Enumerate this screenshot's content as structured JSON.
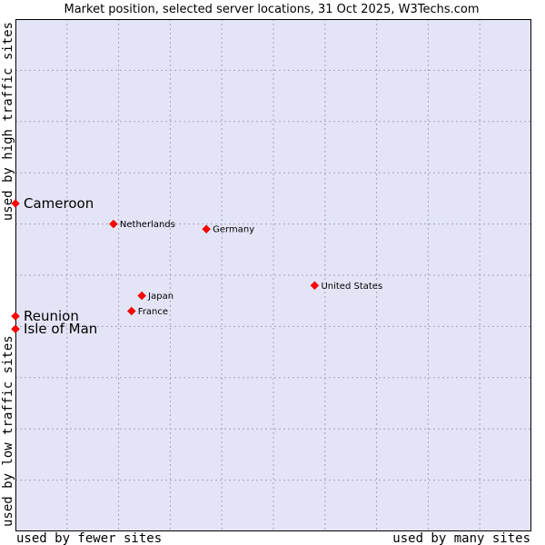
{
  "chart_data": {
    "type": "scatter",
    "title": "Market position, selected server locations, 31 Oct 2025, W3Techs.com",
    "xlabel_left": "used by fewer sites",
    "xlabel_right": "used by many sites",
    "ylabel_top": "used by high traffic sites",
    "ylabel_bottom": "used by low traffic sites",
    "xlim": [
      0,
      100
    ],
    "ylim": [
      0,
      100
    ],
    "grid": true,
    "colors": {
      "plot_bg": "#e3e5f7",
      "grid": "#a6a6b9",
      "point": "#ff0000",
      "border": "#000000"
    },
    "points": [
      {
        "name": "Cameroon",
        "x": 0,
        "y": 64,
        "emphasized": true
      },
      {
        "name": "Netherlands",
        "x": 19,
        "y": 60,
        "emphasized": false
      },
      {
        "name": "Germany",
        "x": 37,
        "y": 59,
        "emphasized": false
      },
      {
        "name": "United States",
        "x": 58,
        "y": 48,
        "emphasized": false
      },
      {
        "name": "Japan",
        "x": 24.5,
        "y": 46,
        "emphasized": false
      },
      {
        "name": "France",
        "x": 22.5,
        "y": 43,
        "emphasized": false
      },
      {
        "name": "Reunion",
        "x": 0,
        "y": 42,
        "emphasized": true
      },
      {
        "name": "Isle of Man",
        "x": 0,
        "y": 39.5,
        "emphasized": true
      }
    ]
  }
}
